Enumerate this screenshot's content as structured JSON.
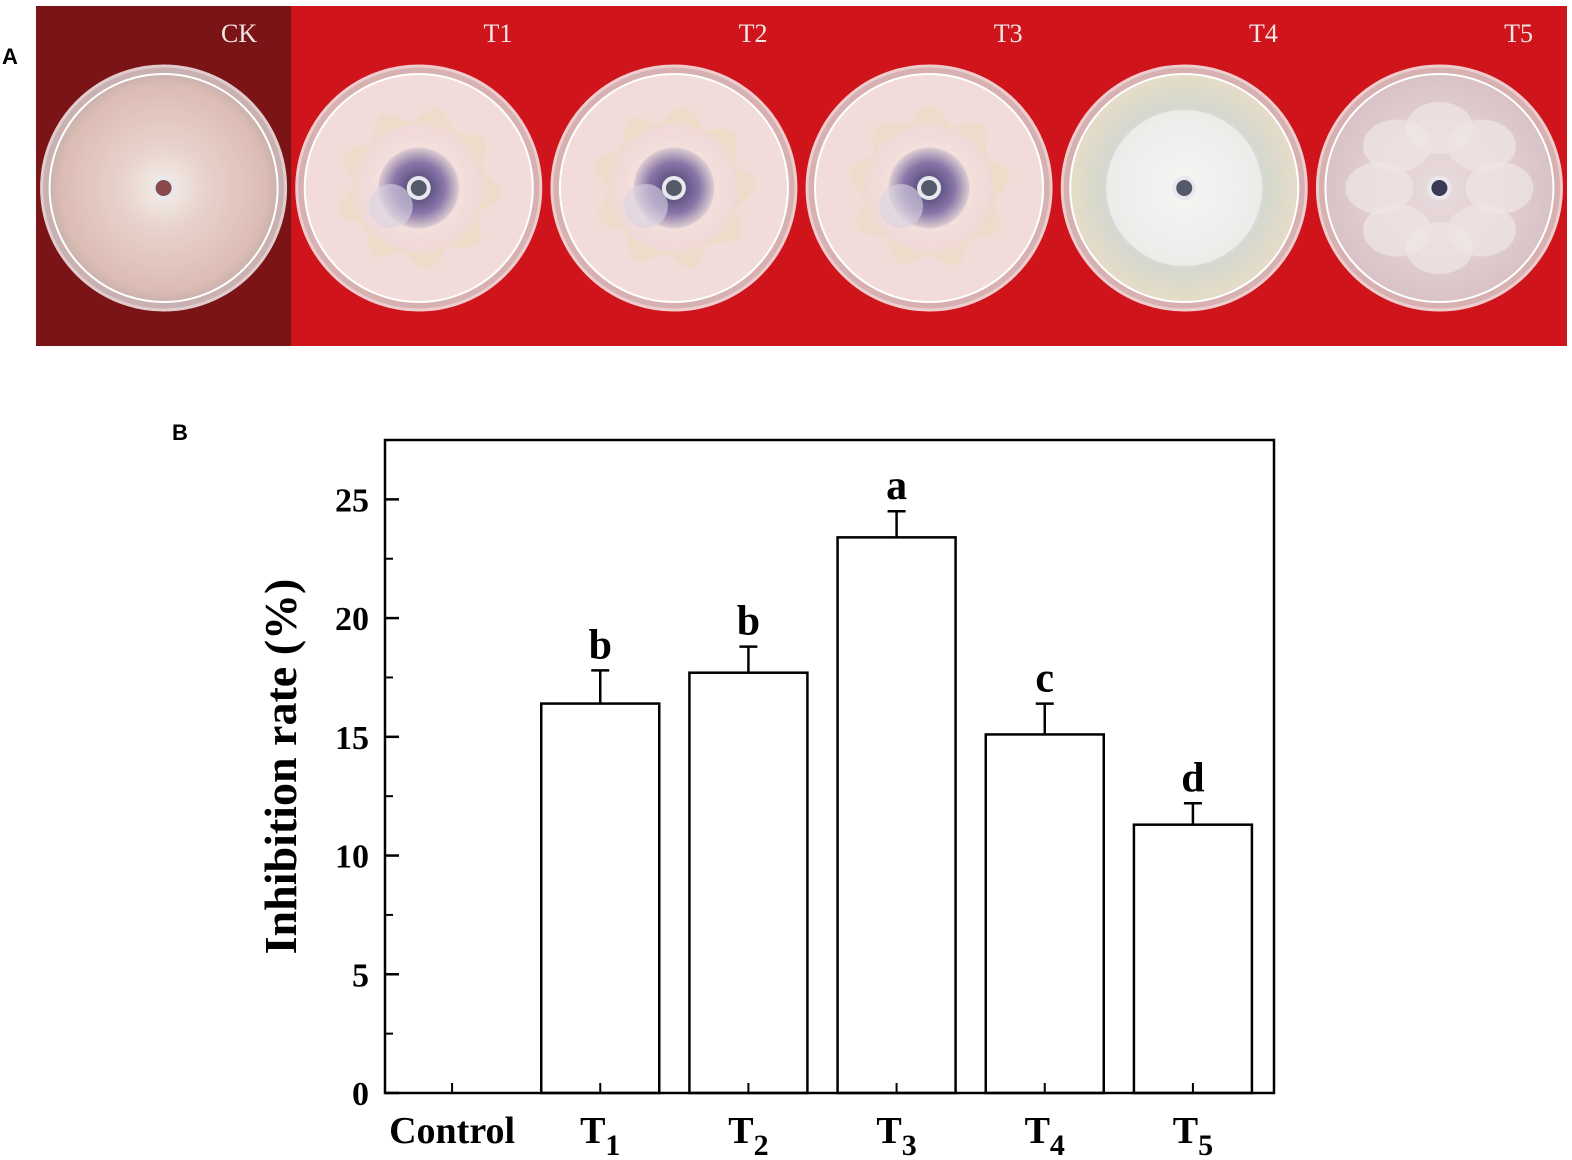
{
  "panels": {
    "a": "A",
    "b": "B"
  },
  "photo": {
    "plates": [
      {
        "label": "CK",
        "kind": "ck"
      },
      {
        "label": "T1",
        "kind": "purple"
      },
      {
        "label": "T2",
        "kind": "purple"
      },
      {
        "label": "T3",
        "kind": "purple"
      },
      {
        "label": "T4",
        "kind": "white"
      },
      {
        "label": "T5",
        "kind": "pinkwhite"
      }
    ],
    "colors": {
      "background": "#d0141c",
      "ck_background": "#7a1416"
    }
  },
  "chart_data": {
    "type": "bar",
    "categories": [
      {
        "base": "Control",
        "sub": ""
      },
      {
        "base": "T",
        "sub": "1"
      },
      {
        "base": "T",
        "sub": "2"
      },
      {
        "base": "T",
        "sub": "3"
      },
      {
        "base": "T",
        "sub": "4"
      },
      {
        "base": "T",
        "sub": "5"
      }
    ],
    "values": [
      0,
      16.4,
      17.7,
      23.4,
      15.1,
      11.3
    ],
    "errors": [
      0,
      1.4,
      1.1,
      1.1,
      1.3,
      0.9
    ],
    "significance": [
      "",
      "b",
      "b",
      "a",
      "c",
      "d"
    ],
    "title": "",
    "xlabel": "",
    "ylabel": "Inhibition rate (%)",
    "ylim": [
      0,
      27.5
    ],
    "yticks": [
      0,
      5,
      10,
      15,
      20,
      25
    ],
    "grid": false,
    "legend": "none",
    "bar_fill": "#ffffff",
    "bar_stroke": "#000000"
  }
}
